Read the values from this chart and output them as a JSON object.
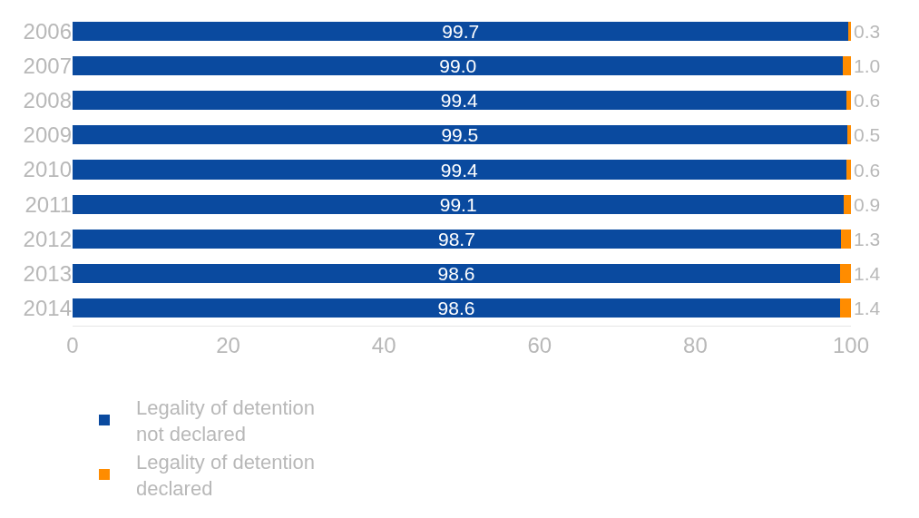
{
  "chart_data": {
    "type": "bar",
    "orientation": "horizontal",
    "stacked": true,
    "categories": [
      "2006",
      "2007",
      "2008",
      "2009",
      "2010",
      "2011",
      "2012",
      "2013",
      "2014"
    ],
    "series": [
      {
        "name": "Legality of detention not declared",
        "color": "#0a4a9f",
        "values": [
          99.7,
          99.0,
          99.4,
          99.5,
          99.4,
          99.1,
          98.7,
          98.6,
          98.6
        ],
        "value_labels": [
          "99.7",
          "99.0",
          "99.4",
          "99.5",
          "99.4",
          "99.1",
          "98.7",
          "98.6",
          "98.6"
        ]
      },
      {
        "name": "Legality of detention declared",
        "color": "#ff8c00",
        "values": [
          0.3,
          1.0,
          0.6,
          0.5,
          0.6,
          0.9,
          1.3,
          1.4,
          1.4
        ],
        "value_labels": [
          "0.3",
          "1.0",
          "0.6",
          "0.5",
          "0.6",
          "0.9",
          "1.3",
          "1.4",
          "1.4"
        ]
      }
    ],
    "xlim": [
      0,
      100
    ],
    "xticks": [
      0,
      20,
      40,
      60,
      80,
      100
    ],
    "legend": "bottom"
  }
}
